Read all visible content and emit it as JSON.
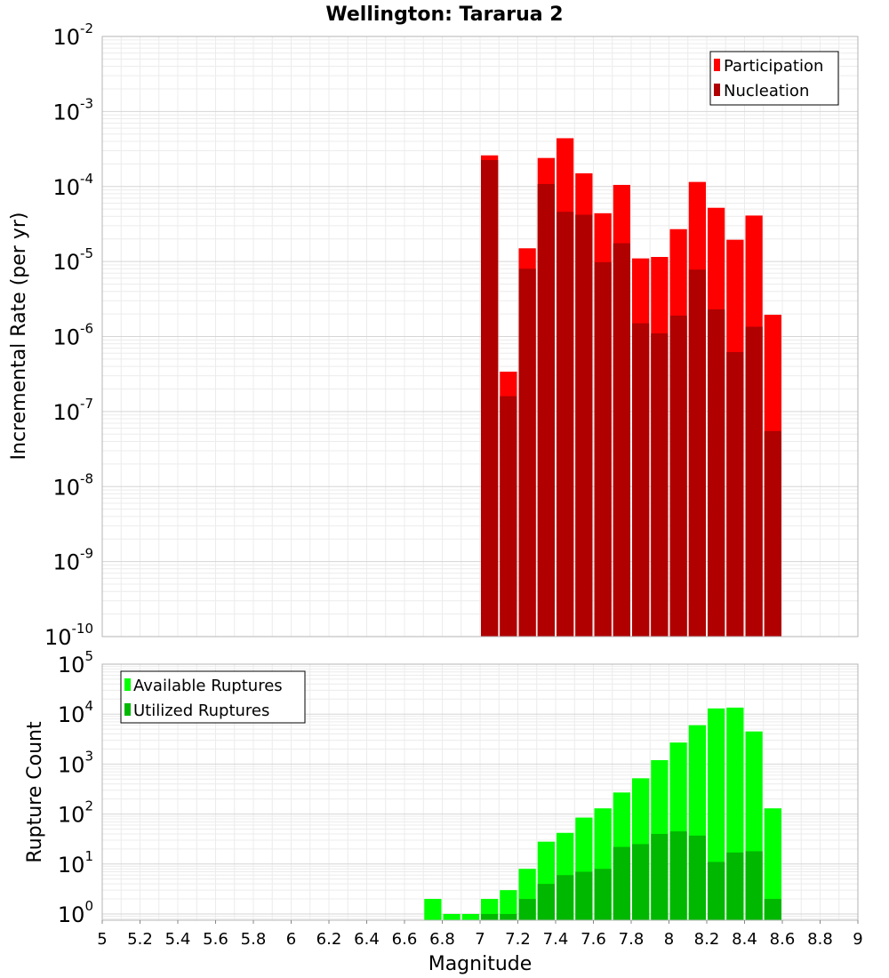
{
  "chart_data": [
    {
      "type": "bar",
      "title": "Wellington: Tararua 2",
      "ylabel": "Incremental Rate (per yr)",
      "xlim": [
        5,
        9
      ],
      "ylim": [
        1e-10,
        0.01
      ],
      "yscale": "log",
      "ytick_exponents": [
        -2,
        -3,
        -4,
        -5,
        -6,
        -7,
        -8,
        -9,
        -10
      ],
      "grid": true,
      "legend_position": "top-right",
      "legend": [
        "Participation",
        "Nucleation"
      ],
      "x": [
        7.05,
        7.15,
        7.25,
        7.35,
        7.45,
        7.55,
        7.65,
        7.75,
        7.85,
        7.95,
        8.05,
        8.15,
        8.25,
        8.35,
        8.45,
        8.55
      ],
      "bar_width": 0.1,
      "series": [
        {
          "name": "Participation",
          "color": "#ff0000",
          "values": [
            0.00026,
            3.4e-07,
            1.5e-05,
            0.00024,
            0.00044,
            0.00015,
            4.4e-05,
            0.000105,
            1.1e-05,
            1.15e-05,
            2.7e-05,
            0.000115,
            5.2e-05,
            1.95e-05,
            4.1e-05,
            1.95e-06
          ]
        },
        {
          "name": "Nucleation",
          "color": "#b00000",
          "values": [
            0.000225,
            1.6e-07,
            8e-06,
            0.000108,
            4.6e-05,
            4.2e-05,
            9.8e-06,
            1.75e-05,
            1.5e-06,
            1.1e-06,
            1.9e-06,
            7.8e-06,
            2.3e-06,
            6.2e-07,
            1.35e-06,
            5.5e-08
          ]
        }
      ]
    },
    {
      "type": "bar",
      "xlabel": "Magnitude",
      "ylabel": "Rupture Count",
      "xlim": [
        5,
        9
      ],
      "ylim": [
        0.75,
        100000.0
      ],
      "yscale": "log",
      "ytick_exponents": [
        0,
        1,
        2,
        3,
        4,
        5
      ],
      "xticks": [
        "5",
        "5.2",
        "5.4",
        "5.6",
        "5.8",
        "6",
        "6.2",
        "6.4",
        "6.6",
        "6.8",
        "7",
        "7.2",
        "7.4",
        "7.6",
        "7.8",
        "8",
        "8.2",
        "8.4",
        "8.6",
        "8.8",
        "9"
      ],
      "grid": true,
      "legend_position": "top-left",
      "legend": [
        "Available Ruptures",
        "Utilized Ruptures"
      ],
      "x": [
        6.75,
        6.85,
        6.95,
        7.05,
        7.15,
        7.25,
        7.35,
        7.45,
        7.55,
        7.65,
        7.75,
        7.85,
        7.95,
        8.05,
        8.15,
        8.25,
        8.35,
        8.45,
        8.55
      ],
      "bar_width": 0.1,
      "series": [
        {
          "name": "Available Ruptures",
          "color": "#00ff00",
          "values": [
            2,
            1,
            1,
            2,
            3,
            8,
            28,
            42,
            85,
            130,
            270,
            520,
            1200,
            2700,
            6000,
            13000,
            13500,
            4500,
            130
          ]
        },
        {
          "name": "Utilized Ruptures",
          "color": "#00b800",
          "values": [
            0,
            0,
            0,
            1,
            1,
            2,
            4,
            6,
            7,
            8,
            22,
            25,
            40,
            45,
            37,
            11,
            17,
            18,
            2
          ]
        }
      ]
    }
  ]
}
